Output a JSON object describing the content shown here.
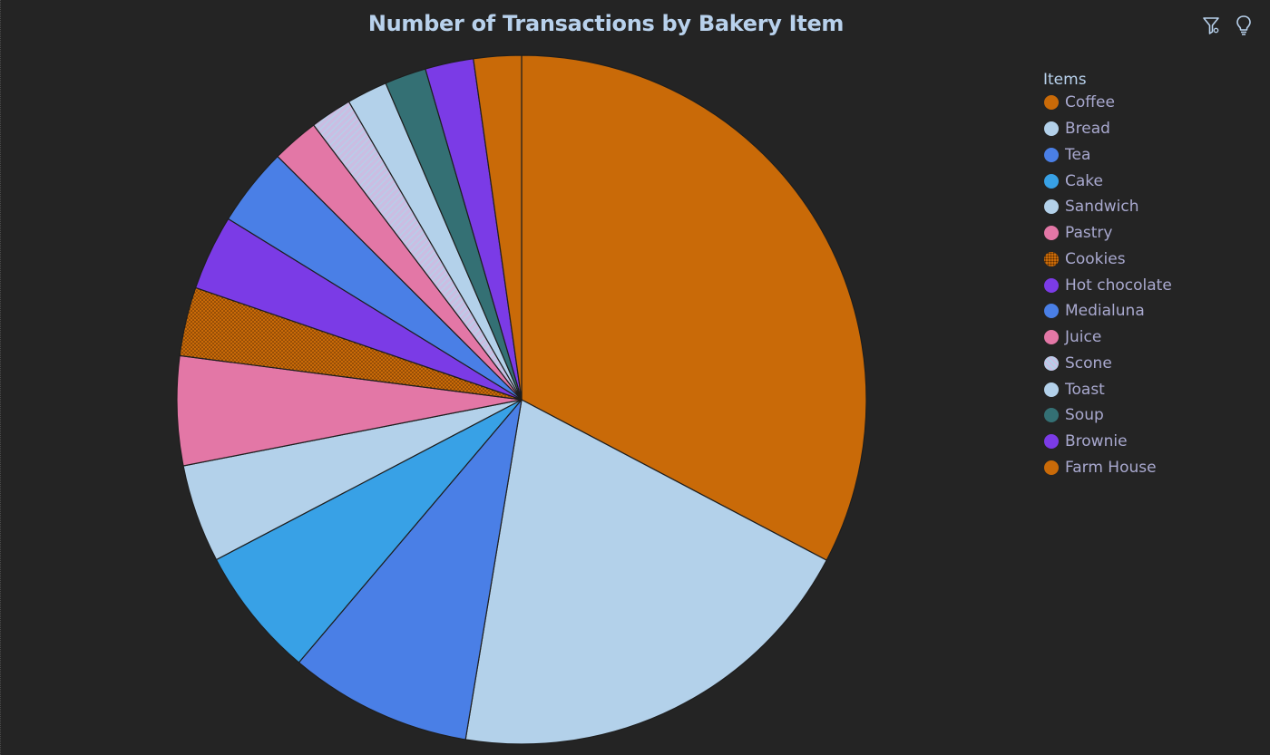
{
  "chart_data": {
    "type": "pie",
    "title": "Number of Transactions by Bakery Item",
    "legend_title": "Items",
    "legend_position": "right",
    "categories": [
      "Coffee",
      "Bread",
      "Tea",
      "Cake",
      "Sandwich",
      "Pastry",
      "Cookies",
      "Hot chocolate",
      "Medialuna",
      "Juice",
      "Scone",
      "Toast",
      "Soup",
      "Brownie",
      "Farm House"
    ],
    "values": [
      5471,
      3325,
      1435,
      1025,
      771,
      856,
      540,
      590,
      616,
      369,
      327,
      318,
      326,
      379,
      374
    ],
    "colors": [
      "#c96a08",
      "#b3d1ea",
      "#4a7fe6",
      "#38a1e6",
      "#b3d1ea",
      "#e377a6",
      "#c96a08",
      "#7b3be6",
      "#4a7fe6",
      "#e377a6",
      "#b3d1ea",
      "#b3d1ea",
      "#347074",
      "#7b3be6",
      "#c96a08"
    ],
    "patterns": [
      "solid",
      "solid",
      "solid",
      "solid",
      "solid",
      "solid",
      "dotted",
      "solid",
      "solid",
      "solid",
      "hatched",
      "solid",
      "solid",
      "solid",
      "solid"
    ]
  },
  "toolbar": {
    "icons": [
      "filter-icon",
      "lightbulb-icon"
    ]
  }
}
